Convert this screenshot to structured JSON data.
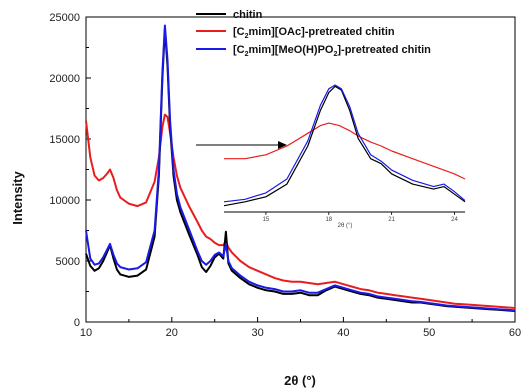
{
  "chart_data": {
    "type": "line",
    "title": "",
    "xlabel": "2θ (°)",
    "ylabel": "Intensity",
    "xlim": [
      10,
      60
    ],
    "ylim": [
      0,
      25000
    ],
    "x_ticks": [
      "10",
      "20",
      "30",
      "40",
      "50",
      "60"
    ],
    "y_ticks": [
      "0",
      "5000",
      "10000",
      "15000",
      "20000",
      "25000"
    ],
    "legend_placement": "top-center",
    "colors": {
      "chitin": "#000000",
      "oac": "#e81e1e",
      "phos": "#1a1ae6"
    },
    "series": [
      {
        "name": "chitin",
        "color": "#000000",
        "x": [
          10,
          10.5,
          11,
          11.5,
          12,
          12.5,
          12.8,
          13.2,
          13.6,
          14,
          15,
          16,
          17,
          18,
          18.5,
          18.9,
          19.2,
          19.5,
          19.8,
          20.2,
          20.6,
          21,
          22,
          23,
          23.5,
          24,
          24.5,
          25,
          25.5,
          26,
          26.3,
          26.6,
          27,
          28,
          29,
          30,
          31,
          32,
          33,
          34,
          35,
          36,
          37,
          38,
          39,
          40,
          41,
          42,
          43,
          44,
          45,
          46,
          47,
          48,
          49,
          50,
          51,
          52,
          53,
          54,
          55,
          56,
          57,
          58,
          59,
          60
        ],
        "y": [
          5600,
          4600,
          4200,
          4400,
          5000,
          5800,
          6300,
          5200,
          4300,
          3900,
          3700,
          3800,
          4300,
          7000,
          12000,
          20000,
          24000,
          21000,
          16000,
          12000,
          10000,
          9000,
          7200,
          5500,
          4500,
          4100,
          4600,
          5300,
          5600,
          5200,
          7400,
          4800,
          4200,
          3600,
          3100,
          2800,
          2600,
          2500,
          2300,
          2300,
          2400,
          2200,
          2200,
          2600,
          2900,
          2700,
          2500,
          2300,
          2200,
          2000,
          1900,
          1800,
          1700,
          1600,
          1600,
          1500,
          1400,
          1300,
          1250,
          1200,
          1150,
          1100,
          1050,
          1000,
          950,
          900
        ]
      },
      {
        "name": "[C2mim][OAc]-pretreated chitin",
        "color": "#e81e1e",
        "x": [
          10,
          10.5,
          11,
          11.5,
          12,
          12.5,
          12.8,
          13.2,
          13.6,
          14,
          15,
          16,
          17,
          18,
          18.5,
          18.9,
          19.2,
          19.5,
          19.8,
          20.2,
          20.6,
          21,
          22,
          23,
          23.5,
          24,
          24.5,
          25,
          25.5,
          26,
          26.3,
          26.6,
          27,
          28,
          29,
          30,
          31,
          32,
          33,
          34,
          35,
          36,
          37,
          38,
          39,
          40,
          41,
          42,
          43,
          44,
          45,
          46,
          47,
          48,
          49,
          50,
          51,
          52,
          53,
          54,
          55,
          56,
          57,
          58,
          59,
          60
        ],
        "y": [
          16500,
          13500,
          12000,
          11600,
          11800,
          12200,
          12500,
          11800,
          10800,
          10200,
          9700,
          9500,
          9800,
          11500,
          13500,
          16000,
          17000,
          16800,
          15500,
          13500,
          12000,
          11000,
          9500,
          8200,
          7500,
          7000,
          6800,
          6500,
          6300,
          6300,
          6600,
          6100,
          5700,
          5000,
          4500,
          4200,
          3900,
          3600,
          3400,
          3300,
          3300,
          3200,
          3100,
          3200,
          3300,
          3100,
          2900,
          2700,
          2600,
          2400,
          2300,
          2200,
          2100,
          2000,
          1900,
          1800,
          1700,
          1600,
          1500,
          1450,
          1400,
          1350,
          1300,
          1250,
          1200,
          1150
        ]
      },
      {
        "name": "[C2mim][MeO(H)PO2]-pretreated chitin",
        "color": "#1a1ae6",
        "x": [
          10,
          10.5,
          11,
          11.5,
          12,
          12.5,
          12.8,
          13.2,
          13.6,
          14,
          15,
          16,
          17,
          18,
          18.5,
          18.9,
          19.2,
          19.5,
          19.8,
          20.2,
          20.6,
          21,
          22,
          23,
          23.5,
          24,
          24.5,
          25,
          25.5,
          26,
          26.3,
          26.6,
          27,
          28,
          29,
          30,
          31,
          32,
          33,
          34,
          35,
          36,
          37,
          38,
          39,
          40,
          41,
          42,
          43,
          44,
          45,
          46,
          47,
          48,
          49,
          50,
          51,
          52,
          53,
          54,
          55,
          56,
          57,
          58,
          59,
          60
        ],
        "y": [
          7500,
          5200,
          4700,
          4800,
          5300,
          6000,
          6400,
          5500,
          4800,
          4500,
          4300,
          4400,
          4900,
          7500,
          12500,
          20500,
          24300,
          21500,
          16500,
          12500,
          10500,
          9400,
          7600,
          5800,
          5000,
          4700,
          5000,
          5500,
          5700,
          5400,
          6400,
          5000,
          4400,
          3800,
          3300,
          3000,
          2800,
          2700,
          2500,
          2500,
          2600,
          2400,
          2400,
          2700,
          3000,
          2800,
          2600,
          2400,
          2300,
          2100,
          2000,
          1900,
          1800,
          1700,
          1650,
          1550,
          1450,
          1350,
          1300,
          1250,
          1200,
          1150,
          1100,
          1050,
          1000,
          950
        ]
      }
    ],
    "inset": {
      "xlabel": "2θ (°)",
      "xlim": [
        13,
        24.5
      ],
      "x_ticks": [
        "15",
        "18",
        "21",
        "24"
      ],
      "series": [
        {
          "name": "chitin",
          "color": "#000000",
          "x": [
            13,
            14,
            15,
            16,
            17,
            17.6,
            18,
            18.3,
            18.6,
            19,
            19.4,
            20,
            20.5,
            21,
            22,
            23,
            23.5,
            24,
            24.5
          ],
          "y": [
            0.05,
            0.08,
            0.12,
            0.22,
            0.52,
            0.8,
            0.94,
            0.99,
            0.96,
            0.8,
            0.58,
            0.42,
            0.38,
            0.3,
            0.22,
            0.18,
            0.2,
            0.14,
            0.08
          ]
        },
        {
          "name": "[C2mim][OAc]-pretreated chitin",
          "color": "#e81e1e",
          "x": [
            13,
            14,
            15,
            16,
            17,
            17.6,
            18,
            18.5,
            19,
            19.5,
            20,
            20.5,
            21,
            22,
            23,
            24,
            24.5
          ],
          "y": [
            0.42,
            0.42,
            0.45,
            0.52,
            0.62,
            0.68,
            0.7,
            0.68,
            0.64,
            0.59,
            0.55,
            0.52,
            0.48,
            0.42,
            0.36,
            0.3,
            0.26
          ]
        },
        {
          "name": "[C2mim][MeO(H)PO2]-pretreated chitin",
          "color": "#1a1ae6",
          "x": [
            13,
            14,
            15,
            16,
            17,
            17.6,
            18,
            18.3,
            18.6,
            19,
            19.4,
            20,
            20.5,
            21,
            22,
            23,
            23.5,
            24,
            24.5
          ],
          "y": [
            0.08,
            0.1,
            0.15,
            0.26,
            0.56,
            0.84,
            0.97,
            1.0,
            0.97,
            0.83,
            0.62,
            0.45,
            0.4,
            0.33,
            0.25,
            0.2,
            0.22,
            0.16,
            0.09
          ]
        }
      ]
    }
  },
  "legend": {
    "chitin": "chitin",
    "oac": {
      "a": "[C",
      "sub": "2",
      "b": "mim][OAc]-pretreated chitin"
    },
    "phos": {
      "a": "[C",
      "sub1": "2",
      "b": "mim][MeO(H)PO",
      "sub2": "2",
      "c": "]-pretreated chitin"
    }
  }
}
